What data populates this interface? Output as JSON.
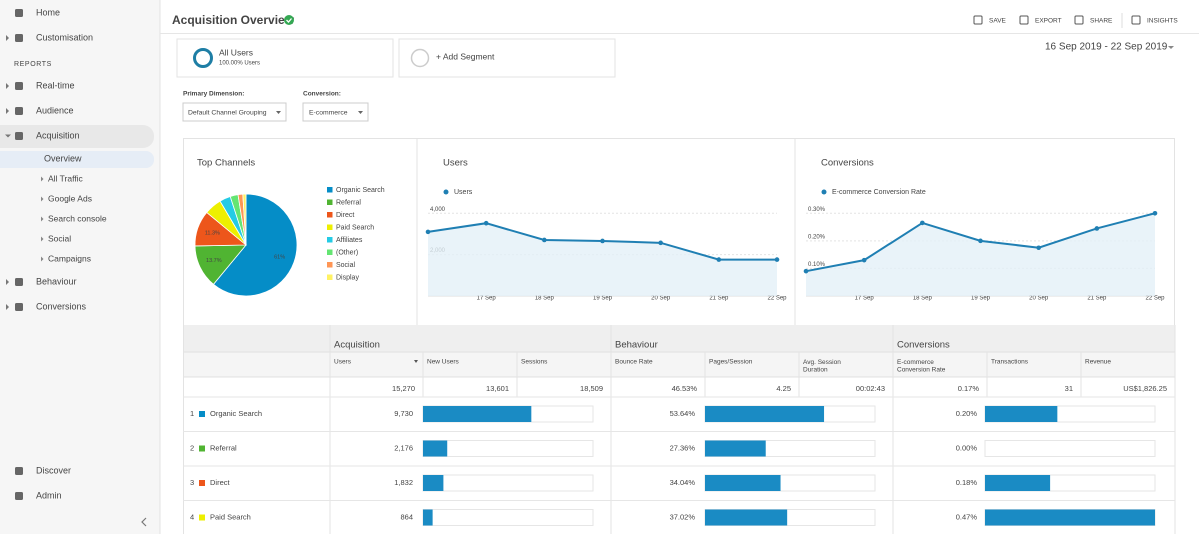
{
  "sidebar": {
    "items": [
      "Home",
      "Customisation",
      "REPORTS",
      "Real-time",
      "Audience",
      "Acquisition",
      "Overview",
      "All Traffic",
      "Google Ads",
      "Search console",
      "Social",
      "Campaigns",
      "Behaviour",
      "Conversions",
      "Discover",
      "Admin"
    ]
  },
  "header": {
    "title": "Acquisition Overview",
    "actions": [
      "SAVE",
      "EXPORT",
      "SHARE",
      "INSIGHTS"
    ],
    "date_range": "16 Sep 2019 - 22 Sep 2019"
  },
  "segments": {
    "active": "All Users",
    "active_detail": "100.00% Users",
    "add": "+ Add Segment"
  },
  "dimensions": {
    "primary_label": "Primary Dimension:",
    "primary_value": "Default Channel Grouping",
    "conversion_label": "Conversion:",
    "conversion_value": "E-commerce"
  },
  "charts": [
    {
      "type": "pie",
      "title": "Top Channels",
      "categories": [
        "Organic Search",
        "Referral",
        "Direct",
        "Paid Search",
        "Affiliates",
        "(Other)",
        "Social",
        "Display"
      ],
      "values": [
        61,
        13.7,
        11.3,
        5.5,
        3.5,
        2.5,
        1.5,
        1
      ],
      "value_labels": [
        "61%",
        "13.7%",
        "11.3%",
        null,
        null,
        null,
        null,
        null
      ],
      "colors": [
        "#058dc7",
        "#50b432",
        "#ed561b",
        "#edef00",
        "#24cbe5",
        "#64e572",
        "#ff9655",
        "#fff263"
      ]
    },
    {
      "type": "line",
      "title": "Users",
      "x": [
        null,
        "17 Sep",
        "18 Sep",
        "19 Sep",
        "20 Sep",
        "21 Sep",
        "22 Sep"
      ],
      "series": [
        {
          "name": "Users",
          "color": "#1f7fb3",
          "values": [
            3100,
            3520,
            2710,
            2660,
            2570,
            1760,
            1760
          ]
        }
      ],
      "ylim": [
        0,
        4400
      ],
      "yticks": [
        {
          "value": 2000,
          "label": "2,000"
        },
        {
          "value": 4000,
          "label": "4,000"
        }
      ],
      "grid": true,
      "area": true
    },
    {
      "type": "line",
      "title": "Conversions",
      "x": [
        null,
        "17 Sep",
        "18 Sep",
        "19 Sep",
        "20 Sep",
        "21 Sep",
        "22 Sep"
      ],
      "series": [
        {
          "name": "E-commerce Conversion Rate",
          "color": "#1f7fb3",
          "values": [
            0.09,
            0.13,
            0.265,
            0.2,
            0.175,
            0.245,
            0.3
          ]
        }
      ],
      "ylim": [
        0,
        0.33
      ],
      "yticks": [
        {
          "value": 0.1,
          "label": "0.10%"
        },
        {
          "value": 0.2,
          "label": "0.20%"
        },
        {
          "value": 0.3,
          "label": "0.30%"
        }
      ],
      "grid": true,
      "area": true
    }
  ],
  "table": {
    "groups": [
      "Acquisition",
      "Behaviour",
      "Conversions"
    ],
    "columns": [
      "Users",
      "New Users",
      "Sessions",
      "Bounce Rate",
      "Pages/Session",
      "Avg. Session Duration",
      "E-commerce Conversion Rate",
      "Transactions",
      "Revenue"
    ],
    "totals": [
      "15,270",
      "13,601",
      "18,509",
      "46.53%",
      "4.25",
      "00:02:43",
      "0.17%",
      "31",
      "US$1,826.25"
    ],
    "users_bar_lim": [
      0,
      15270
    ],
    "bounce_rate_bar_lim": [
      0,
      76.6
    ],
    "conversion_rate_bar_lim": [
      0,
      0.47
    ],
    "rows": [
      {
        "rank": "1",
        "channel": "Organic Search",
        "color": "#058dc7",
        "users": 9730,
        "users_label": "9,730",
        "bounce_rate": 53.64,
        "bounce_rate_label": "53.64%",
        "conversion_rate": 0.2,
        "conversion_rate_label": "0.20%"
      },
      {
        "rank": "2",
        "channel": "Referral",
        "color": "#50b432",
        "users": 2176,
        "users_label": "2,176",
        "bounce_rate": 27.36,
        "bounce_rate_label": "27.36%",
        "conversion_rate": 0,
        "conversion_rate_label": "0.00%"
      },
      {
        "rank": "3",
        "channel": "Direct",
        "color": "#ed561b",
        "users": 1832,
        "users_label": "1,832",
        "bounce_rate": 34.04,
        "bounce_rate_label": "34.04%",
        "conversion_rate": 0.18,
        "conversion_rate_label": "0.18%"
      },
      {
        "rank": "4",
        "channel": "Paid Search",
        "color": "#edef00",
        "users": 864,
        "users_label": "864",
        "bounce_rate": 37.02,
        "bounce_rate_label": "37.02%",
        "conversion_rate": 0.47,
        "conversion_rate_label": "0.47%"
      }
    ]
  }
}
